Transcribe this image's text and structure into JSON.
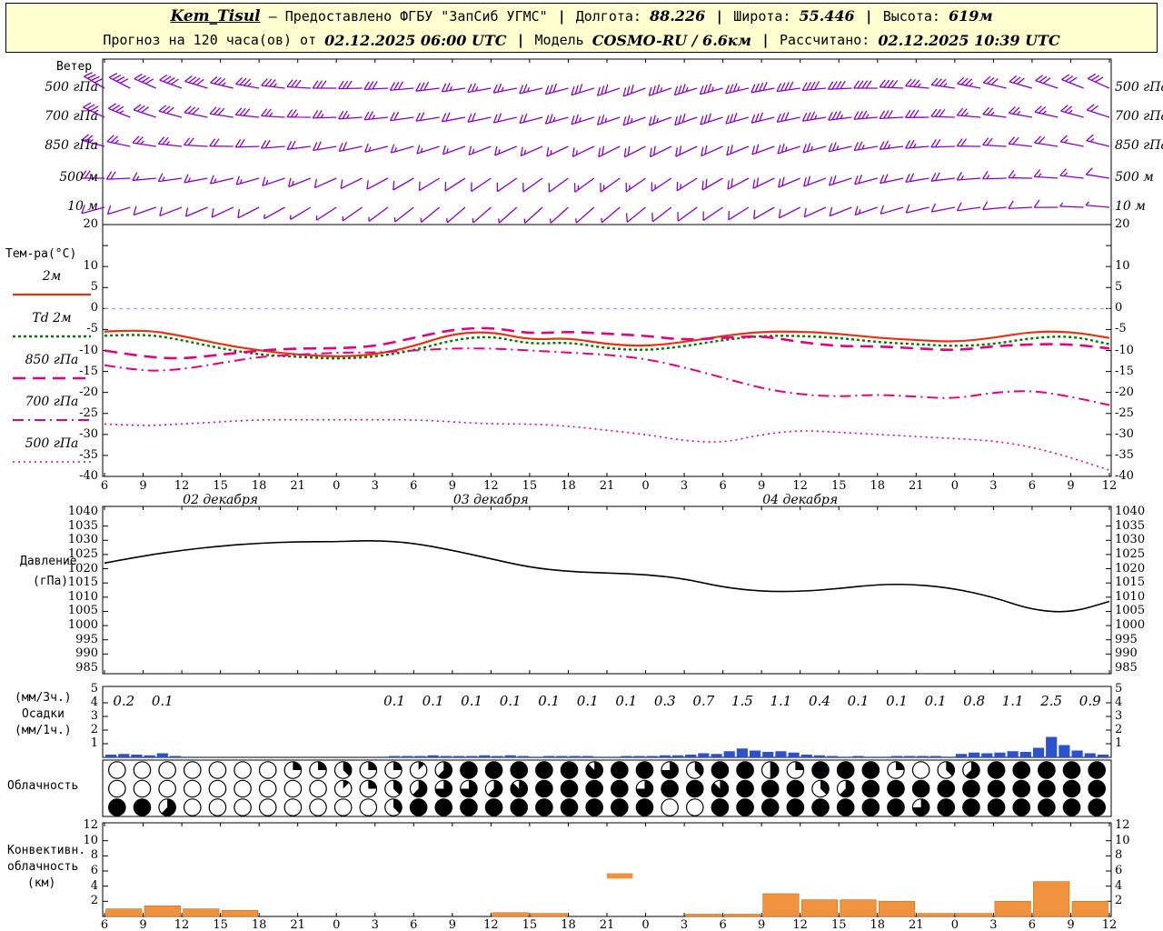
{
  "header": {
    "station": "Kem_Tisul",
    "provider": "— Предоставлено ФГБУ \"ЗапСиб УГМС\"",
    "sep": "|",
    "lon_label": "Долгота:",
    "lon": "88.226",
    "lat_label": "Широта:",
    "lat": "55.446",
    "alt_label": "Высота:",
    "alt": "619м",
    "line2_prefix": "Прогноз на 120 часа(ов) от",
    "run_time": "02.12.2025 06:00 UTC",
    "model_label": "Модель",
    "model": "COSMO-RU / 6.6км",
    "calc_label": "Рассчитано:",
    "calc_time": "02.12.2025 10:39 UTC"
  },
  "panel_titles": {
    "wind": "Ветер",
    "temp": "Тем-ра(°C)",
    "pressure1": "Давление",
    "pressure2": "(гПа)",
    "precip1": "(мм/3ч.)",
    "precip2": "Осадки",
    "precip3": "(мм/1ч.)",
    "cloud": "Облачность",
    "conv1": "Конвективн.",
    "conv2": "облачность",
    "conv3": "(км)"
  },
  "axes": {
    "temp_ticks": [
      20,
      10,
      5,
      0,
      -5,
      -10,
      -15,
      -20,
      -25,
      -30,
      -35,
      -40
    ],
    "pressure_ticks": [
      1040,
      1035,
      1030,
      1025,
      1020,
      1015,
      1010,
      1005,
      1000,
      995,
      990,
      985
    ],
    "precip_ticks": [
      5,
      4,
      3,
      2,
      1
    ],
    "conv_ticks": [
      12,
      10,
      8,
      6,
      4,
      2
    ],
    "hour_labels": [
      "6",
      "9",
      "12",
      "15",
      "18",
      "21",
      "0",
      "3",
      "6",
      "9",
      "12",
      "15",
      "18",
      "21",
      "0",
      "3",
      "6",
      "9",
      "12",
      "15",
      "18",
      "21",
      "0",
      "3",
      "6",
      "9",
      "12"
    ],
    "date_labels": [
      "02 декабря",
      "03 декабря",
      "04 декабря"
    ]
  },
  "colors": {
    "barb": "#8b00cc",
    "t2m": "#e63312",
    "td": "#007a00",
    "upper_levels": "#e6007e",
    "pressure": "#000000",
    "rain": "#2a52d0",
    "conv": "#f0923e",
    "header_bg": "#ffffd0",
    "zero_line": "#8899ee"
  },
  "chart_data": [
    {
      "id": "wind",
      "type": "wind-barbs",
      "title": "Ветер",
      "x_start_hour": 6,
      "x_step_h": 3,
      "x_span_h": 78,
      "rows": [
        {
          "level": "500 гПа",
          "dir": [
            300,
            295,
            290,
            285,
            280,
            275,
            270,
            268,
            265,
            262,
            260,
            258,
            255,
            252,
            250,
            252,
            255,
            258,
            262,
            266,
            270,
            274,
            278,
            282,
            286,
            290,
            294
          ],
          "spd": [
            22,
            22,
            20,
            20,
            18,
            18,
            16,
            16,
            15,
            15,
            14,
            14,
            15,
            16,
            17,
            18,
            18,
            20,
            20,
            22,
            22,
            20,
            18,
            18,
            16,
            16,
            15
          ]
        },
        {
          "level": "700 гПа",
          "dir": [
            295,
            290,
            285,
            280,
            276,
            272,
            268,
            265,
            262,
            260,
            258,
            256,
            254,
            252,
            250,
            250,
            252,
            255,
            258,
            262,
            265,
            268,
            272,
            276,
            280,
            284,
            288
          ],
          "spd": [
            18,
            18,
            16,
            16,
            15,
            14,
            14,
            13,
            12,
            12,
            12,
            12,
            13,
            14,
            14,
            15,
            16,
            16,
            17,
            18,
            18,
            16,
            15,
            14,
            14,
            13,
            12
          ]
        },
        {
          "level": "850 гПа",
          "dir": [
            285,
            280,
            276,
            272,
            268,
            264,
            260,
            257,
            254,
            251,
            249,
            247,
            245,
            244,
            243,
            244,
            246,
            249,
            252,
            256,
            260,
            264,
            268,
            272,
            276,
            280,
            284
          ],
          "spd": [
            14,
            14,
            13,
            12,
            12,
            11,
            10,
            10,
            9,
            9,
            8,
            8,
            9,
            10,
            10,
            11,
            12,
            12,
            13,
            14,
            14,
            13,
            12,
            11,
            10,
            10,
            9
          ]
        },
        {
          "level": "500 м",
          "dir": [
            270,
            266,
            262,
            258,
            254,
            250,
            246,
            243,
            240,
            238,
            236,
            235,
            234,
            234,
            235,
            237,
            240,
            243,
            247,
            251,
            255,
            259,
            263,
            267,
            271,
            275,
            279
          ],
          "spd": [
            10,
            10,
            9,
            9,
            8,
            8,
            7,
            7,
            6,
            6,
            6,
            6,
            7,
            8,
            8,
            9,
            10,
            10,
            11,
            12,
            12,
            11,
            10,
            9,
            8,
            8,
            7
          ]
        },
        {
          "level": "10 м",
          "dir": [
            255,
            252,
            249,
            246,
            243,
            240,
            237,
            234,
            232,
            230,
            229,
            228,
            228,
            229,
            231,
            233,
            236,
            239,
            243,
            247,
            251,
            255,
            259,
            263,
            267,
            271,
            275
          ],
          "spd": [
            6,
            6,
            5,
            5,
            5,
            4,
            4,
            4,
            3,
            3,
            3,
            3,
            4,
            4,
            5,
            5,
            6,
            6,
            7,
            7,
            8,
            7,
            6,
            6,
            5,
            5,
            4
          ]
        }
      ]
    },
    {
      "id": "temperature",
      "type": "line",
      "title": "Тем-ра(°C)",
      "ylim": [
        -40,
        20
      ],
      "x_step_h": 3,
      "series": [
        {
          "name": "2м",
          "color": "#e63312",
          "style": "solid",
          "width": 2.2,
          "values": [
            -5.5,
            -5,
            -6.5,
            -8.5,
            -10,
            -11,
            -11.5,
            -11,
            -9,
            -6,
            -5.5,
            -7.5,
            -7,
            -8.5,
            -9,
            -8,
            -6.5,
            -5.5,
            -5.5,
            -6,
            -7,
            -7.5,
            -8,
            -7,
            -5.5,
            -5.5,
            -7
          ]
        },
        {
          "name": "Td 2м",
          "color": "#007a00",
          "style": "dots",
          "width": 2.4,
          "values": [
            -6.5,
            -6,
            -7.5,
            -9.5,
            -11,
            -11.5,
            -12,
            -11.5,
            -10,
            -7.5,
            -6.5,
            -8.5,
            -8,
            -9.5,
            -10,
            -9,
            -7.5,
            -6.5,
            -6.5,
            -7,
            -8,
            -8.5,
            -9,
            -8.5,
            -7,
            -6.5,
            -8.5
          ]
        },
        {
          "name": "850 гПа",
          "color": "#e6007e",
          "style": "longdash",
          "width": 2.6,
          "values": [
            -10,
            -11.5,
            -12,
            -11,
            -10,
            -9.5,
            -9.5,
            -9,
            -7,
            -5,
            -4.5,
            -6,
            -5.5,
            -6,
            -6.5,
            -7.5,
            -7,
            -6.5,
            -8,
            -9,
            -9,
            -9.5,
            -10,
            -9,
            -8.5,
            -8.5,
            -9.5
          ]
        },
        {
          "name": "700 гПа",
          "color": "#e6007e",
          "style": "dashdot",
          "width": 2,
          "values": [
            -13.5,
            -15,
            -14.5,
            -13,
            -11.5,
            -11,
            -10.5,
            -10.5,
            -10,
            -9.5,
            -9.5,
            -10,
            -10.5,
            -11,
            -12,
            -14,
            -16.5,
            -19,
            -20.5,
            -21,
            -20.5,
            -21,
            -21.5,
            -20,
            -19.5,
            -21,
            -23
          ]
        },
        {
          "name": "500 гПа",
          "color": "#e6007e",
          "style": "dot",
          "width": 1.6,
          "values": [
            -27.5,
            -28,
            -27.5,
            -27,
            -26.5,
            -26.5,
            -26.5,
            -26.5,
            -26.5,
            -27,
            -27.5,
            -27.5,
            -28,
            -29,
            -30,
            -31.5,
            -32,
            -30,
            -29,
            -29.5,
            -30,
            -30.5,
            -31,
            -31.5,
            -33,
            -35.5,
            -38.5
          ]
        }
      ]
    },
    {
      "id": "pressure",
      "type": "line",
      "title": "Давление (гПа)",
      "ylim": [
        985,
        1040
      ],
      "x_step_h": 3,
      "values": [
        1022,
        1024.5,
        1026.5,
        1028,
        1029,
        1029.5,
        1029.5,
        1030,
        1029,
        1026.5,
        1023.5,
        1020.5,
        1019,
        1018.5,
        1018,
        1016.5,
        1013.5,
        1012,
        1012,
        1013,
        1014.5,
        1014.5,
        1013,
        1010,
        1005.5,
        1004.5,
        1008.5
      ]
    },
    {
      "id": "precip",
      "type": "bar",
      "title": "Осадки (мм/3ч. и мм/1ч.)",
      "ylim": [
        0,
        5
      ],
      "sums_3h": [
        0.2,
        0.1,
        0,
        0,
        0,
        0,
        0,
        0.1,
        0.1,
        0.1,
        0.1,
        0.1,
        0.1,
        0.1,
        0.3,
        0.7,
        1.5,
        1.1,
        0.4,
        0.1,
        0.1,
        0.1,
        0.8,
        1.1,
        2.5,
        0.9
      ],
      "bars_1h": [
        0.2,
        0.25,
        0.2,
        0.15,
        0.3,
        0.1,
        0.05,
        0,
        0,
        0,
        0,
        0,
        0,
        0,
        0,
        0,
        0,
        0,
        0,
        0,
        0,
        0.05,
        0.1,
        0.1,
        0.1,
        0.15,
        0.1,
        0.1,
        0.1,
        0.15,
        0.1,
        0.15,
        0.1,
        0.05,
        0.1,
        0.1,
        0.1,
        0.1,
        0.05,
        0.05,
        0.1,
        0.1,
        0.1,
        0.15,
        0.15,
        0.2,
        0.3,
        0.25,
        0.45,
        0.65,
        0.5,
        0.4,
        0.45,
        0.35,
        0.2,
        0.15,
        0.1,
        0.05,
        0.1,
        0.05,
        0.05,
        0.1,
        0.1,
        0.1,
        0.1,
        0.05,
        0.25,
        0.35,
        0.3,
        0.35,
        0.45,
        0.4,
        0.7,
        1.5,
        0.9,
        0.5,
        0.3,
        0.2
      ]
    },
    {
      "id": "cloud",
      "type": "heatmap",
      "title": "Облачность",
      "okta_rows": [
        [
          0,
          0,
          0,
          0,
          0,
          0,
          0,
          2,
          2,
          3,
          2,
          2,
          1,
          5,
          8,
          8,
          8,
          8,
          8,
          7,
          8,
          8,
          6,
          3,
          8,
          8,
          4,
          2,
          8,
          8,
          8,
          2,
          0,
          3,
          5,
          8,
          8,
          8,
          8,
          8
        ],
        [
          0,
          0,
          0,
          0,
          0,
          0,
          0,
          0,
          0,
          1,
          2,
          3,
          5,
          6,
          6,
          5,
          7,
          8,
          8,
          8,
          8,
          6,
          8,
          8,
          7,
          8,
          8,
          8,
          3,
          5,
          8,
          8,
          8,
          8,
          8,
          8,
          8,
          8,
          8,
          8
        ],
        [
          8,
          8,
          5,
          0,
          0,
          0,
          0,
          0,
          0,
          0,
          0,
          3,
          8,
          8,
          8,
          8,
          8,
          8,
          8,
          8,
          8,
          8,
          0,
          0,
          8,
          8,
          8,
          8,
          8,
          8,
          8,
          8,
          6,
          8,
          8,
          8,
          8,
          8,
          8,
          8
        ]
      ]
    },
    {
      "id": "convective",
      "type": "bar",
      "title": "Конвективная облачность (км)",
      "ylim": [
        0,
        12
      ],
      "values": [
        1.0,
        1.4,
        1.0,
        0.8,
        0,
        0,
        0,
        0,
        0,
        0,
        0.5,
        0.4,
        0,
        0,
        0,
        0.3,
        0.3,
        3.0,
        2.2,
        2.2,
        2.0,
        0.4,
        0.4,
        2.0,
        4.6,
        2.0
      ],
      "elevated": {
        "from_h": 39,
        "to_h": 41,
        "base_km": 5.0,
        "top_km": 5.7
      }
    }
  ]
}
